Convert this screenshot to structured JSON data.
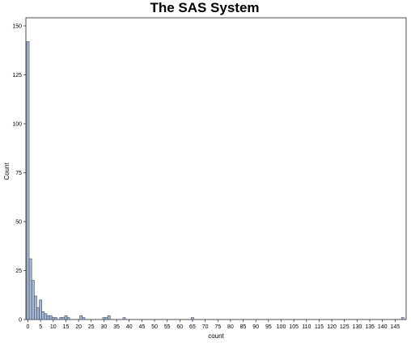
{
  "colors": {
    "bar_fill": "#a7b8d0",
    "bar_stroke": "#3a4a6a",
    "frame": "#000000",
    "background": "#ffffff"
  },
  "chart_data": {
    "type": "bar",
    "title": "The SAS System",
    "xlabel": "count",
    "ylabel": "Count",
    "xlim": [
      0,
      148
    ],
    "ylim": [
      0,
      150
    ],
    "grid": false,
    "bin_width": 1,
    "x_ticks": [
      0,
      5,
      10,
      15,
      20,
      25,
      30,
      35,
      40,
      45,
      50,
      55,
      60,
      65,
      70,
      75,
      80,
      85,
      90,
      95,
      100,
      105,
      110,
      115,
      120,
      125,
      130,
      135,
      140,
      145
    ],
    "y_ticks": [
      0,
      25,
      50,
      75,
      100,
      125,
      150
    ],
    "x": [
      0,
      1,
      2,
      3,
      4,
      5,
      6,
      7,
      8,
      9,
      10,
      11,
      13,
      14,
      15,
      16,
      21,
      22,
      30,
      31,
      32,
      38,
      65,
      148
    ],
    "values": [
      142,
      31,
      20,
      12,
      6,
      10,
      4,
      3,
      2,
      2,
      1,
      1,
      1,
      1,
      2,
      1,
      2,
      1,
      1,
      1,
      2,
      1,
      1,
      1
    ]
  }
}
